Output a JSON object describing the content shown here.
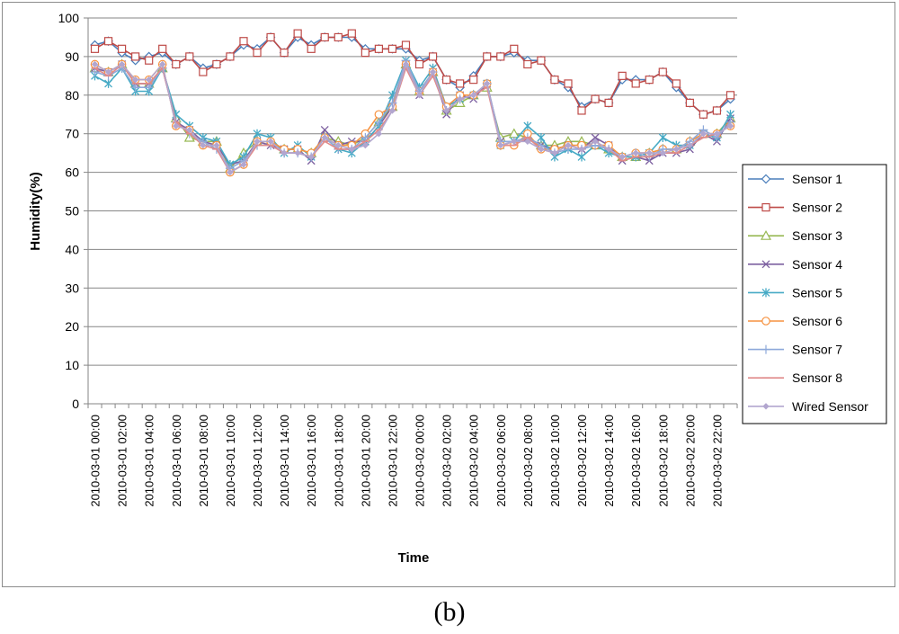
{
  "caption": "(b)",
  "chart_data": {
    "type": "line",
    "title": "",
    "xlabel": "Time",
    "ylabel": "Humidity(%)",
    "ylim": [
      0,
      100
    ],
    "yticks": [
      0,
      10,
      20,
      30,
      40,
      50,
      60,
      70,
      80,
      90,
      100
    ],
    "grid": "horizontal",
    "legend_position": "right",
    "x": [
      "2010-03-01 00:00",
      "2010-03-01 01:00",
      "2010-03-01 02:00",
      "2010-03-01 03:00",
      "2010-03-01 04:00",
      "2010-03-01 05:00",
      "2010-03-01 06:00",
      "2010-03-01 07:00",
      "2010-03-01 08:00",
      "2010-03-01 09:00",
      "2010-03-01 10:00",
      "2010-03-01 11:00",
      "2010-03-01 12:00",
      "2010-03-01 13:00",
      "2010-03-01 14:00",
      "2010-03-01 15:00",
      "2010-03-01 16:00",
      "2010-03-01 17:00",
      "2010-03-01 18:00",
      "2010-03-01 19:00",
      "2010-03-01 20:00",
      "2010-03-01 21:00",
      "2010-03-01 22:00",
      "2010-03-01 23:00",
      "2010-03-02 00:00",
      "2010-03-02 01:00",
      "2010-03-02 02:00",
      "2010-03-02 03:00",
      "2010-03-02 04:00",
      "2010-03-02 05:00",
      "2010-03-02 06:00",
      "2010-03-02 07:00",
      "2010-03-02 08:00",
      "2010-03-02 09:00",
      "2010-03-02 10:00",
      "2010-03-02 11:00",
      "2010-03-02 12:00",
      "2010-03-02 13:00",
      "2010-03-02 14:00",
      "2010-03-02 15:00",
      "2010-03-02 16:00",
      "2010-03-02 17:00",
      "2010-03-02 18:00",
      "2010-03-02 19:00",
      "2010-03-02 20:00",
      "2010-03-02 21:00",
      "2010-03-02 22:00",
      "2010-03-02 23:00"
    ],
    "x_tick_labels": [
      "2010-03-01 00:00",
      "2010-03-01 02:00",
      "2010-03-01 04:00",
      "2010-03-01 06:00",
      "2010-03-01 08:00",
      "2010-03-01 10:00",
      "2010-03-01 12:00",
      "2010-03-01 14:00",
      "2010-03-01 16:00",
      "2010-03-01 18:00",
      "2010-03-01 20:00",
      "2010-03-01 22:00",
      "2010-03-02 00:00",
      "2010-03-02 02:00",
      "2010-03-02 04:00",
      "2010-03-02 06:00",
      "2010-03-02 08:00",
      "2010-03-02 10:00",
      "2010-03-02 12:00",
      "2010-03-02 14:00",
      "2010-03-02 16:00",
      "2010-03-02 18:00",
      "2010-03-02 20:00",
      "2010-03-02 22:00"
    ],
    "series": [
      {
        "name": "Sensor 1",
        "color": "#4a7ebb",
        "marker": "diamond",
        "values": [
          93,
          94,
          91,
          89,
          90,
          91,
          88,
          90,
          87,
          88,
          90,
          93,
          92,
          95,
          91,
          95,
          93,
          95,
          95,
          95,
          92,
          92,
          92,
          92,
          89,
          90,
          84,
          82,
          85,
          90,
          90,
          91,
          89,
          89,
          84,
          82,
          77,
          79,
          78,
          84,
          84,
          84,
          86,
          82,
          78,
          75,
          76,
          79
        ]
      },
      {
        "name": "Sensor 2",
        "color": "#be4b48",
        "marker": "square",
        "values": [
          92,
          94,
          92,
          90,
          89,
          92,
          88,
          90,
          86,
          88,
          90,
          94,
          91,
          95,
          91,
          96,
          92,
          95,
          95,
          96,
          91,
          92,
          92,
          93,
          88,
          90,
          84,
          83,
          84,
          90,
          90,
          92,
          88,
          89,
          84,
          83,
          76,
          79,
          78,
          85,
          83,
          84,
          86,
          83,
          78,
          75,
          76,
          80
        ]
      },
      {
        "name": "Sensor 3",
        "color": "#98b954",
        "marker": "triangle",
        "values": [
          87,
          86,
          88,
          83,
          83,
          87,
          74,
          69,
          68,
          68,
          61,
          65,
          68,
          68,
          66,
          66,
          65,
          69,
          68,
          67,
          69,
          73,
          77,
          88,
          81,
          86,
          76,
          78,
          80,
          82,
          69,
          70,
          69,
          67,
          67,
          68,
          68,
          67,
          66,
          64,
          64,
          65,
          66,
          66,
          68,
          70,
          70,
          74
        ]
      },
      {
        "name": "Sensor 4",
        "color": "#7d60a0",
        "marker": "x",
        "values": [
          87,
          86,
          88,
          83,
          83,
          87,
          73,
          71,
          68,
          67,
          62,
          63,
          68,
          67,
          66,
          66,
          63,
          71,
          67,
          68,
          68,
          72,
          77,
          88,
          80,
          86,
          75,
          80,
          79,
          83,
          68,
          68,
          69,
          67,
          66,
          67,
          66,
          69,
          67,
          63,
          64,
          63,
          65,
          65,
          66,
          70,
          68,
          74
        ]
      },
      {
        "name": "Sensor 5",
        "color": "#46aac5",
        "marker": "asterisk",
        "values": [
          85,
          83,
          87,
          81,
          81,
          87,
          75,
          72,
          69,
          68,
          62,
          64,
          70,
          69,
          65,
          67,
          64,
          69,
          66,
          65,
          68,
          72,
          80,
          89,
          82,
          87,
          77,
          79,
          80,
          83,
          67,
          68,
          72,
          69,
          64,
          66,
          64,
          67,
          65,
          64,
          64,
          65,
          69,
          67,
          67,
          70,
          69,
          75
        ]
      },
      {
        "name": "Sensor 6",
        "color": "#f69240",
        "marker": "circle",
        "values": [
          88,
          86,
          88,
          84,
          84,
          88,
          72,
          71,
          67,
          67,
          60,
          62,
          68,
          68,
          66,
          66,
          65,
          69,
          67,
          67,
          70,
          75,
          77,
          88,
          81,
          86,
          77,
          80,
          80,
          83,
          67,
          67,
          70,
          66,
          66,
          67,
          67,
          67,
          67,
          64,
          65,
          65,
          66,
          66,
          68,
          70,
          70,
          72
        ]
      },
      {
        "name": "Sensor 7",
        "color": "#8ea9da",
        "marker": "plus",
        "values": [
          86,
          85,
          87,
          82,
          82,
          87,
          73,
          70,
          68,
          66,
          61,
          63,
          67,
          67,
          65,
          65,
          64,
          69,
          66,
          66,
          69,
          73,
          78,
          89,
          81,
          86,
          76,
          79,
          80,
          83,
          68,
          68,
          69,
          67,
          65,
          66,
          66,
          67,
          66,
          64,
          65,
          64,
          66,
          66,
          68,
          71,
          69,
          73
        ]
      },
      {
        "name": "Sensor 8",
        "color": "#e08a8a",
        "marker": "dash",
        "values": [
          87,
          85,
          88,
          83,
          83,
          87,
          73,
          70,
          67,
          66,
          60,
          62,
          67,
          67,
          65,
          65,
          64,
          68,
          66,
          66,
          68,
          71,
          76,
          87,
          80,
          85,
          76,
          79,
          80,
          82,
          67,
          67,
          69,
          66,
          65,
          67,
          66,
          68,
          66,
          63,
          64,
          64,
          65,
          65,
          67,
          69,
          70,
          72
        ]
      },
      {
        "name": "Wired Sensor",
        "color": "#b2a6cf",
        "marker": "smalldiamond",
        "values": [
          88,
          86,
          88,
          84,
          84,
          88,
          72,
          71,
          67,
          67,
          60,
          62,
          68,
          68,
          65,
          65,
          64,
          69,
          67,
          66,
          67,
          70,
          76,
          88,
          80,
          86,
          76,
          79,
          80,
          83,
          67,
          68,
          68,
          66,
          65,
          67,
          66,
          68,
          66,
          64,
          65,
          65,
          65,
          66,
          67,
          70,
          70,
          72
        ]
      }
    ]
  }
}
